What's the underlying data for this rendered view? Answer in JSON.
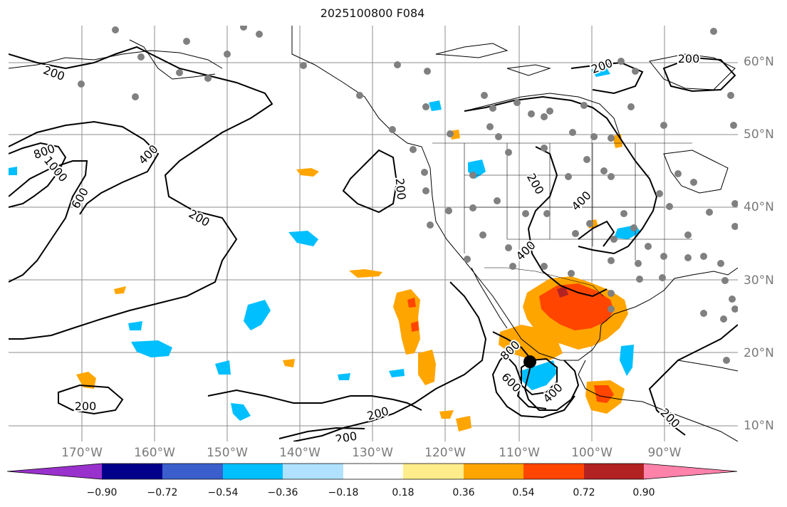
{
  "title": "2025100800 F084",
  "lat_labels": [
    "60°N",
    "50°N",
    "40°N",
    "30°N",
    "20°N",
    "10°N"
  ],
  "lon_labels": [
    "170°W",
    "160°W",
    "150°W",
    "140°W",
    "130°W",
    "120°W",
    "110°W",
    "100°W",
    "90°W"
  ],
  "contour_labels": [
    "200",
    "200",
    "200",
    "200",
    "200",
    "200",
    "200",
    "200",
    "200",
    "200",
    "400",
    "400",
    "400",
    "400",
    "600",
    "600",
    "800",
    "800",
    "1000"
  ],
  "colorbar": {
    "ticks": [
      "−0.90",
      "−0.72",
      "−0.54",
      "−0.36",
      "−0.18",
      "0.18",
      "0.36",
      "0.54",
      "0.72",
      "0.90"
    ],
    "colors": [
      "#9932cc",
      "#00008b",
      "#3a5fcd",
      "#00bfff",
      "#b0e2ff",
      "#ffffff",
      "#ffec8b",
      "#ffa500",
      "#ff4500",
      "#b22222",
      "#ff82ab"
    ]
  },
  "colors": {
    "coast": "#000000",
    "grid": "#8c8c8c",
    "dots": "#808080",
    "center_marker": "#000000"
  }
}
